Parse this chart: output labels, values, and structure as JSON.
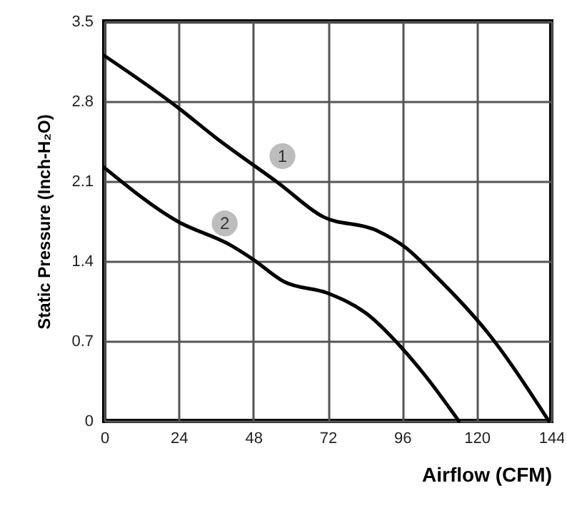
{
  "chart_data": {
    "type": "line",
    "xlabel": "Airflow (CFM)",
    "ylabel": "Static Pressure (Inch-H₂O)",
    "xlim": [
      0,
      144
    ],
    "xticks": [
      0,
      24,
      48,
      72,
      96,
      120,
      144
    ],
    "ylim": [
      0,
      3.5
    ],
    "yticks": [
      0,
      0.7,
      1.4,
      2.1,
      2.8,
      3.5
    ],
    "grid": true,
    "marker": "none",
    "line_style": "solid",
    "series": [
      {
        "color": "#000000",
        "x": [
          0,
          23.5,
          36,
          56.3,
          70.4,
          87.6,
          97,
          106,
          123.6,
          143.2
        ],
        "values": [
          3.2,
          2.75,
          2.48,
          2.08,
          1.79,
          1.67,
          1.52,
          1.29,
          0.77,
          0
        ]
      },
      {
        "color": "#000000",
        "x": [
          0,
          23.5,
          40.7,
          47.7,
          57.9,
          71.9,
          84.5,
          95.5,
          103.3,
          114.2
        ],
        "values": [
          2.22,
          1.75,
          1.54,
          1.42,
          1.22,
          1.12,
          0.94,
          0.65,
          0.4,
          0
        ]
      }
    ],
    "annotations": [
      {
        "text": "1",
        "x": 57.4,
        "y": 2.32
      },
      {
        "text": "2",
        "x": 38.8,
        "y": 1.73
      }
    ]
  }
}
